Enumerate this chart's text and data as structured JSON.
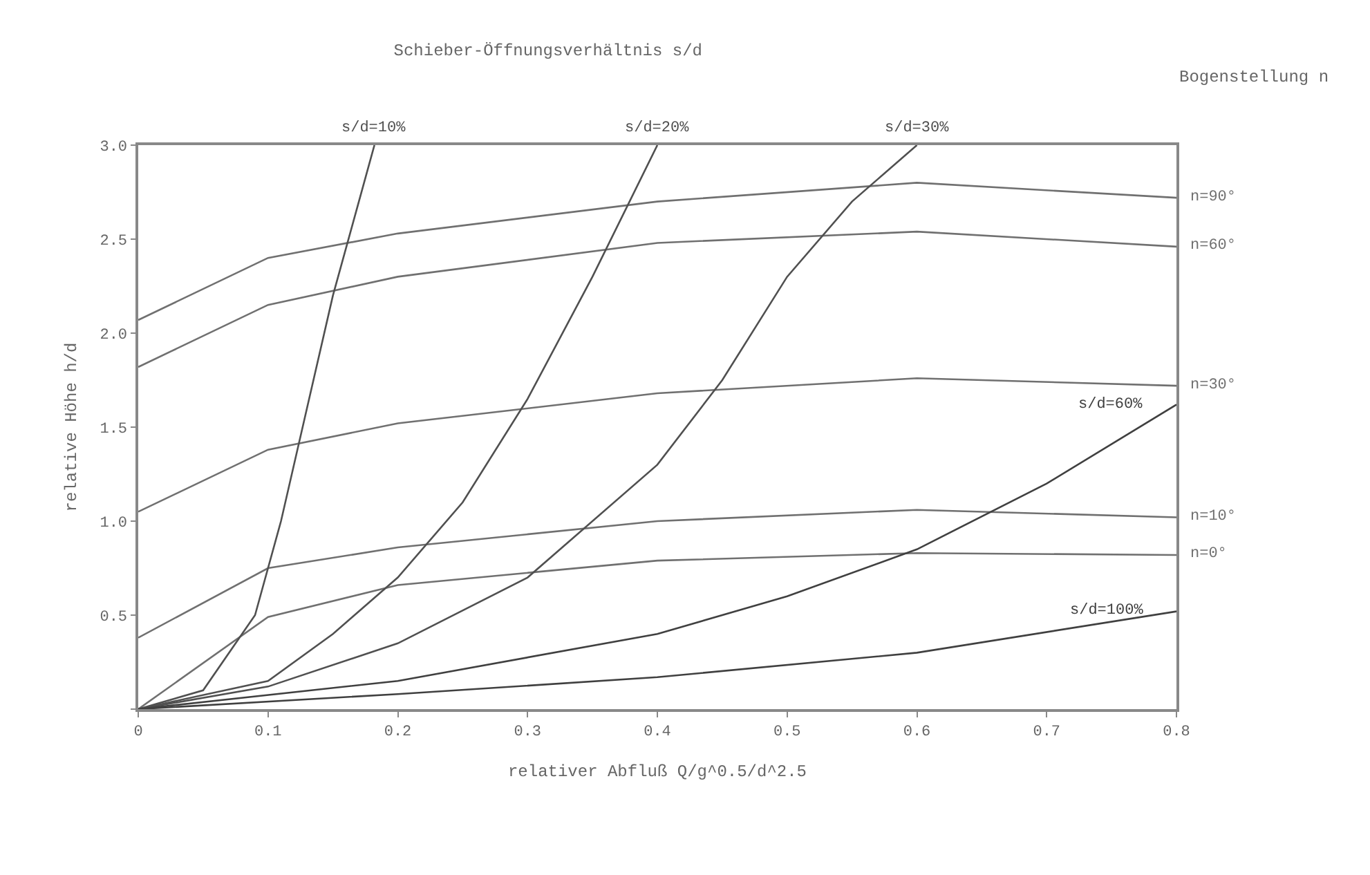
{
  "chart_data": {
    "type": "line",
    "title": "Schieber-Öffnungsverhältnis s/d",
    "annotations": [
      "Bogenstellung n"
    ],
    "xlabel": "relativer Abfluß Q/g^0.5/d^2.5",
    "ylabel": "relative Höhe h/d",
    "xlim": [
      0,
      0.8
    ],
    "ylim": [
      0,
      3.0
    ],
    "xticks": [
      {
        "value": 0,
        "label": "0"
      },
      0.1,
      0.2,
      0.3,
      0.4,
      0.5,
      0.6,
      0.7,
      0.8
    ],
    "yticks": [
      {
        "value": 0,
        "label": null
      },
      0.5,
      {
        "value": 1,
        "label": "1.0"
      },
      1.5,
      {
        "value": 2,
        "label": "2.0"
      },
      2.5,
      {
        "value": 3,
        "label": "3.0"
      }
    ],
    "legend": false,
    "marker": "none",
    "line_style": "solid",
    "series": [
      {
        "name": "n=90°",
        "color": "#707070",
        "x": [
          0,
          0.1,
          0.2,
          0.4,
          0.6,
          0.8
        ],
        "values": [
          2.07,
          2.4,
          2.53,
          2.7,
          2.8,
          2.72
        ]
      },
      {
        "name": "n=60°",
        "color": "#707070",
        "x": [
          0,
          0.1,
          0.2,
          0.4,
          0.6,
          0.8
        ],
        "values": [
          1.82,
          2.15,
          2.3,
          2.48,
          2.54,
          2.46
        ]
      },
      {
        "name": "n=30°",
        "color": "#707070",
        "x": [
          0,
          0.1,
          0.2,
          0.4,
          0.6,
          0.8
        ],
        "values": [
          1.05,
          1.38,
          1.52,
          1.68,
          1.76,
          1.72
        ]
      },
      {
        "name": "n=10°",
        "color": "#707070",
        "x": [
          0,
          0.1,
          0.2,
          0.4,
          0.6,
          0.8
        ],
        "values": [
          0.38,
          0.75,
          0.86,
          1.0,
          1.06,
          1.02
        ]
      },
      {
        "name": "n=0°",
        "color": "#707070",
        "x": [
          0,
          0.1,
          0.2,
          0.4,
          0.6,
          0.8
        ],
        "values": [
          0,
          0.49,
          0.66,
          0.79,
          0.83,
          0.82
        ]
      },
      {
        "name": "s/d=10%",
        "color": "#505050",
        "x": [
          0,
          0.05,
          0.09,
          0.11,
          0.13,
          0.15,
          0.17,
          0.182
        ],
        "values": [
          0,
          0.1,
          0.5,
          1.0,
          1.6,
          2.2,
          2.7,
          3.0
        ]
      },
      {
        "name": "s/d=20%",
        "color": "#505050",
        "x": [
          0,
          0.1,
          0.15,
          0.2,
          0.25,
          0.3,
          0.35,
          0.4
        ],
        "values": [
          0,
          0.15,
          0.4,
          0.7,
          1.1,
          1.65,
          2.3,
          3.0
        ]
      },
      {
        "name": "s/d=30%",
        "color": "#505050",
        "x": [
          0,
          0.1,
          0.2,
          0.3,
          0.4,
          0.45,
          0.5,
          0.55,
          0.6
        ],
        "values": [
          0,
          0.12,
          0.35,
          0.7,
          1.3,
          1.75,
          2.3,
          2.7,
          3.0
        ]
      },
      {
        "name": "s/d=60%",
        "color": "#404040",
        "x": [
          0,
          0.2,
          0.4,
          0.5,
          0.6,
          0.7,
          0.8
        ],
        "values": [
          0,
          0.15,
          0.4,
          0.6,
          0.85,
          1.2,
          1.62
        ]
      },
      {
        "name": "s/d=100%",
        "color": "#404040",
        "x": [
          0,
          0.2,
          0.4,
          0.6,
          0.8
        ],
        "values": [
          0,
          0.08,
          0.17,
          0.3,
          0.52
        ]
      }
    ]
  }
}
